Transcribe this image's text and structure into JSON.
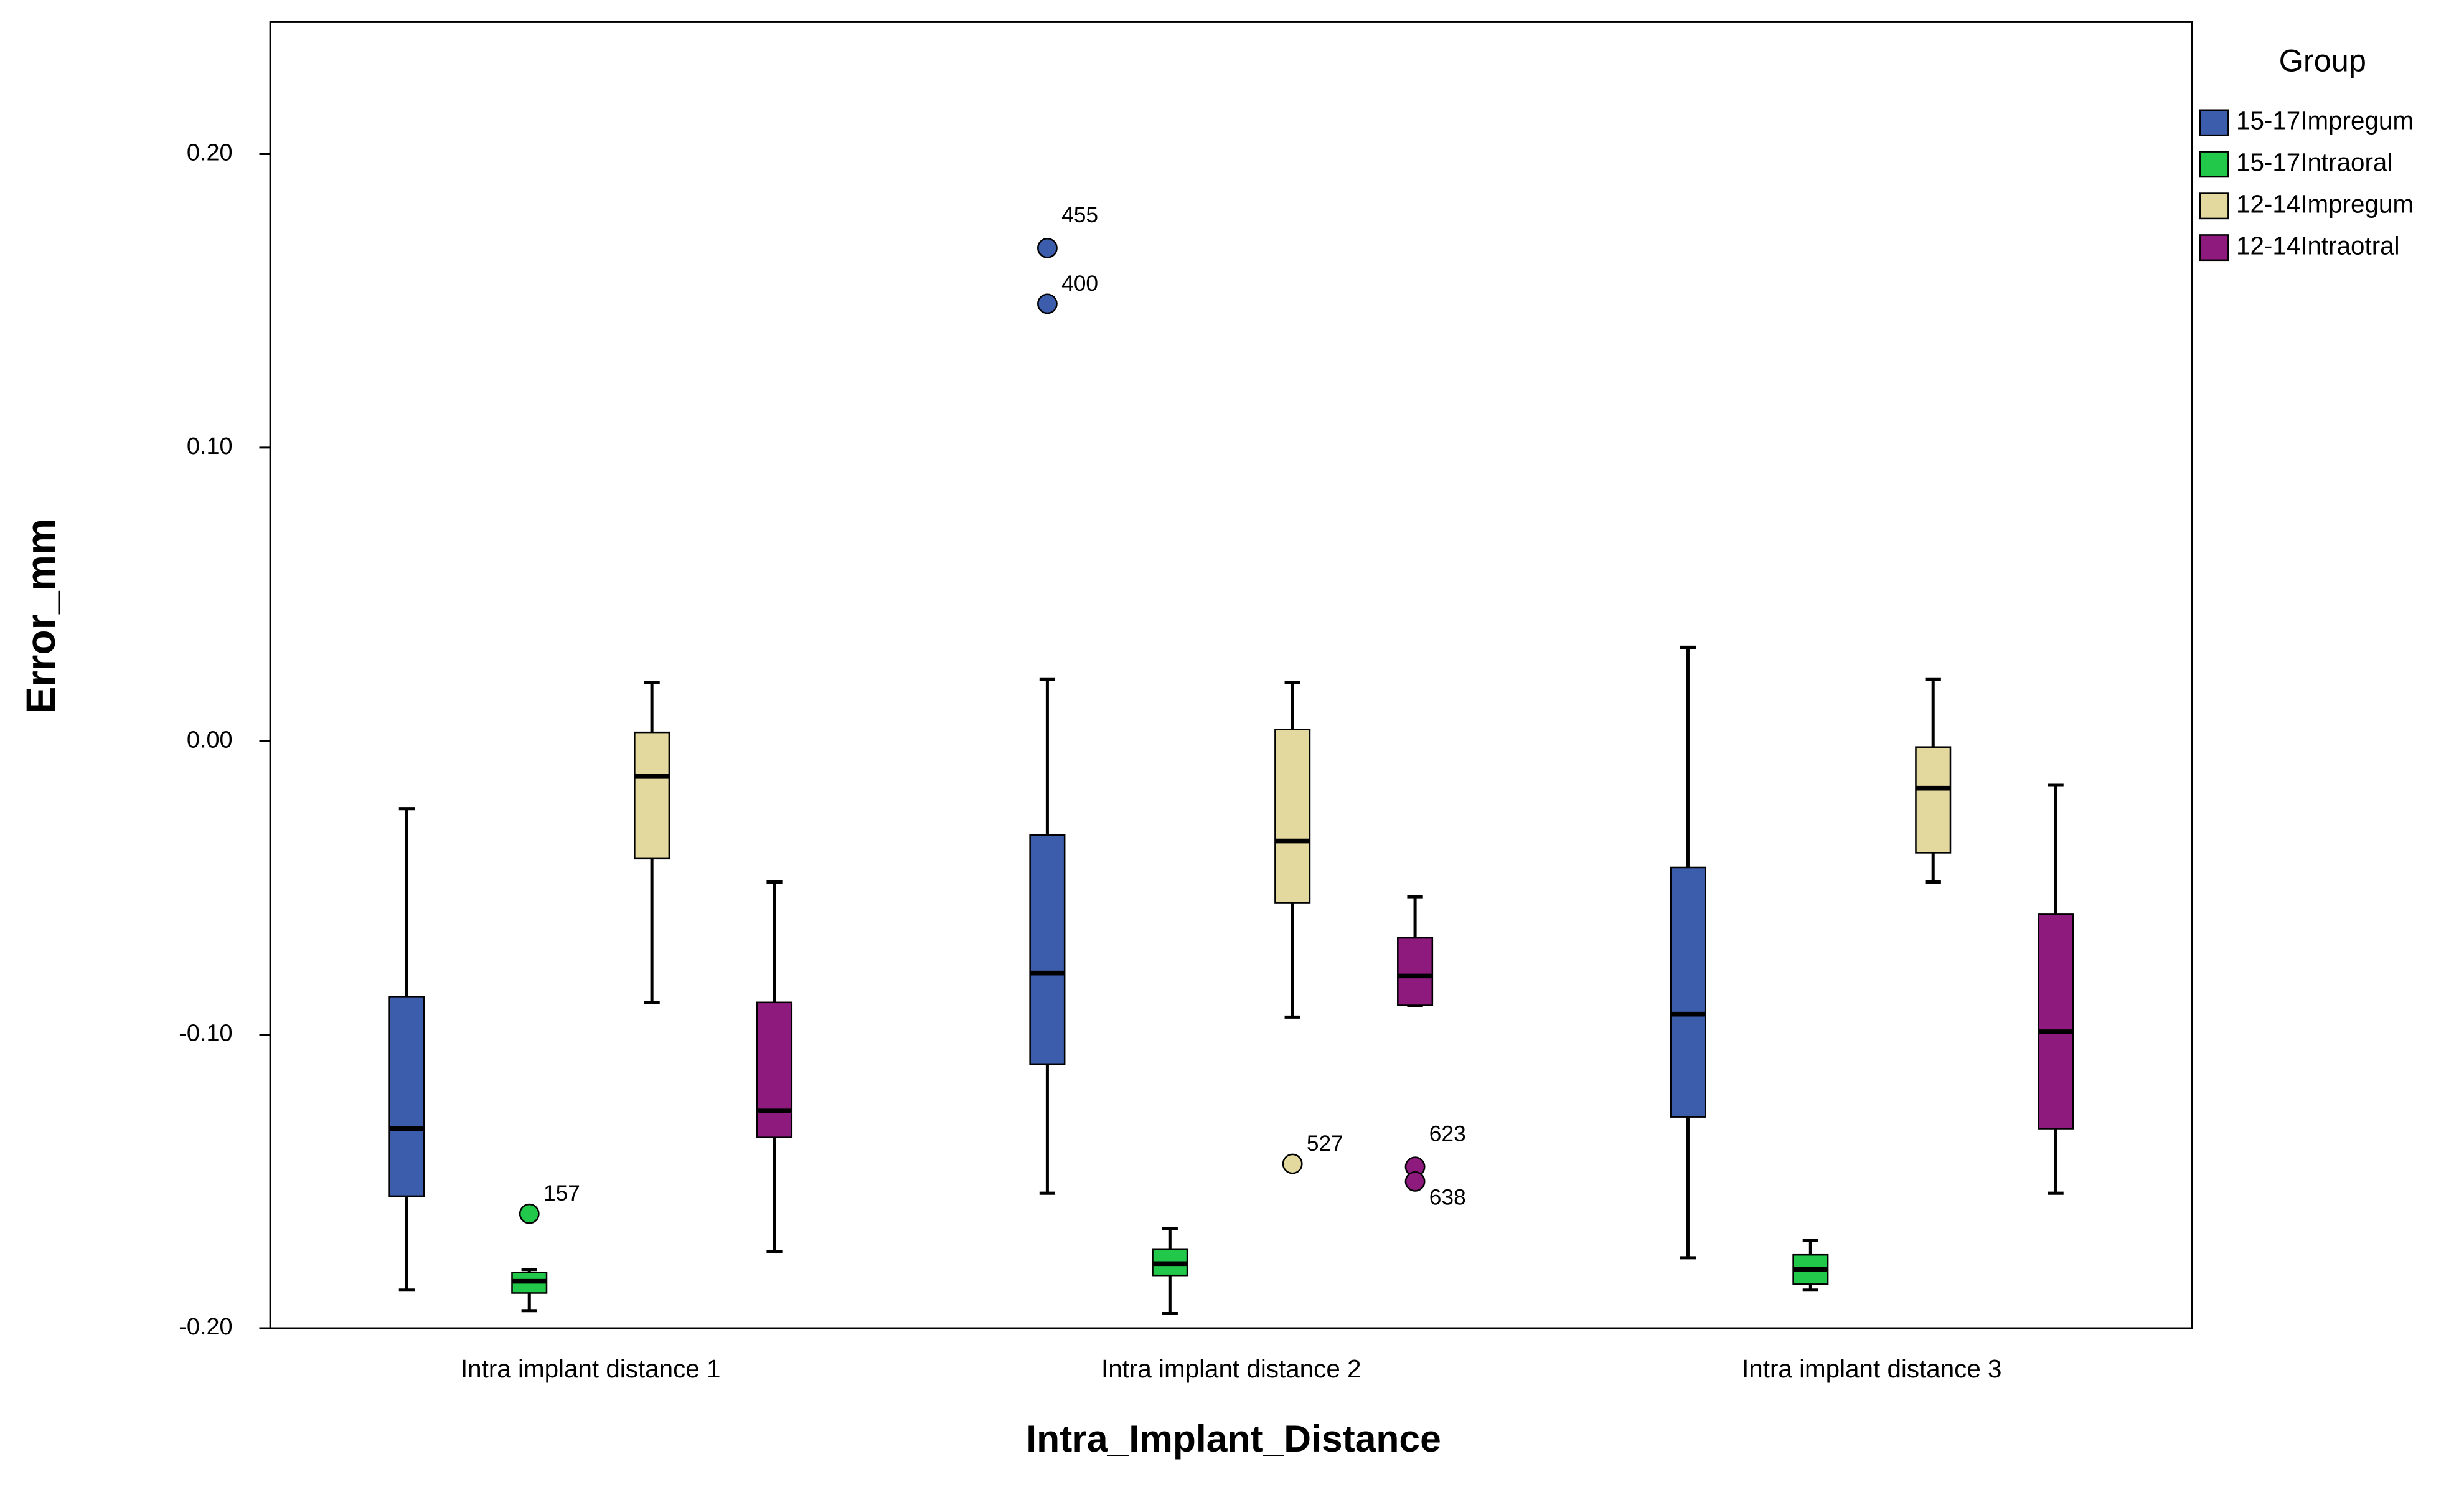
{
  "chart_data": {
    "type": "boxplot",
    "y_label": "Error_mm",
    "x_label": "Intra_Implant_Distance",
    "categories": [
      "Intra implant distance 1",
      "Intra implant distance 2",
      "Intra implant distance 3"
    ],
    "ylim": [
      -0.2,
      0.245
    ],
    "yticks": [
      {
        "value": -0.2,
        "label": "-0.20"
      },
      {
        "value": -0.1,
        "label": "-0.10"
      },
      {
        "value": 0,
        "label": "0.00"
      },
      {
        "value": 0.1,
        "label": "0.10"
      },
      {
        "value": 0.2,
        "label": "0.20"
      }
    ],
    "legend_title": "Group",
    "legend_position": "right",
    "series": [
      {
        "name": "15-17Impregum",
        "color": "#3b5dab",
        "boxes": [
          {
            "whisker_low": -0.187,
            "q1": -0.155,
            "median": -0.132,
            "q3": -0.087,
            "whisker_high": -0.023,
            "outliers": []
          },
          {
            "whisker_low": -0.154,
            "q1": -0.11,
            "median": -0.079,
            "q3": -0.032,
            "whisker_high": 0.021,
            "outliers": [
              {
                "value": 0.168,
                "id": "455"
              },
              {
                "value": 0.149,
                "id": "400"
              }
            ]
          },
          {
            "whisker_low": -0.176,
            "q1": -0.128,
            "median": -0.093,
            "q3": -0.043,
            "whisker_high": 0.032,
            "outliers": []
          }
        ]
      },
      {
        "name": "15-17Intraoral",
        "color": "#22c84a",
        "boxes": [
          {
            "whisker_low": -0.194,
            "q1": -0.188,
            "median": -0.184,
            "q3": -0.181,
            "whisker_high": -0.18,
            "outliers": [
              {
                "value": -0.161,
                "id": "157"
              }
            ]
          },
          {
            "whisker_low": -0.195,
            "q1": -0.182,
            "median": -0.178,
            "q3": -0.173,
            "whisker_high": -0.166,
            "outliers": []
          },
          {
            "whisker_low": -0.187,
            "q1": -0.185,
            "median": -0.18,
            "q3": -0.175,
            "whisker_high": -0.17,
            "outliers": []
          }
        ]
      },
      {
        "name": "12-14Impregum",
        "color": "#e3d99f",
        "boxes": [
          {
            "whisker_low": -0.089,
            "q1": -0.04,
            "median": -0.012,
            "q3": 0.003,
            "whisker_high": 0.02,
            "outliers": []
          },
          {
            "whisker_low": -0.094,
            "q1": -0.055,
            "median": -0.034,
            "q3": 0.004,
            "whisker_high": 0.02,
            "outliers": [
              {
                "value": -0.144,
                "id": "527"
              }
            ]
          },
          {
            "whisker_low": -0.048,
            "q1": -0.038,
            "median": -0.016,
            "q3": -0.002,
            "whisker_high": 0.021,
            "outliers": []
          }
        ]
      },
      {
        "name": "12-14Intraotral",
        "color": "#8e1a7e",
        "boxes": [
          {
            "whisker_low": -0.174,
            "q1": -0.135,
            "median": -0.126,
            "q3": -0.089,
            "whisker_high": -0.048,
            "outliers": []
          },
          {
            "whisker_low": -0.09,
            "q1": -0.09,
            "median": -0.08,
            "q3": -0.067,
            "whisker_high": -0.053,
            "outliers": [
              {
                "value": -0.145,
                "id": "623"
              },
              {
                "value": -0.15,
                "id": "638"
              }
            ]
          },
          {
            "whisker_low": -0.154,
            "q1": -0.132,
            "median": -0.099,
            "q3": -0.059,
            "whisker_high": -0.015,
            "outliers": []
          }
        ]
      }
    ]
  }
}
